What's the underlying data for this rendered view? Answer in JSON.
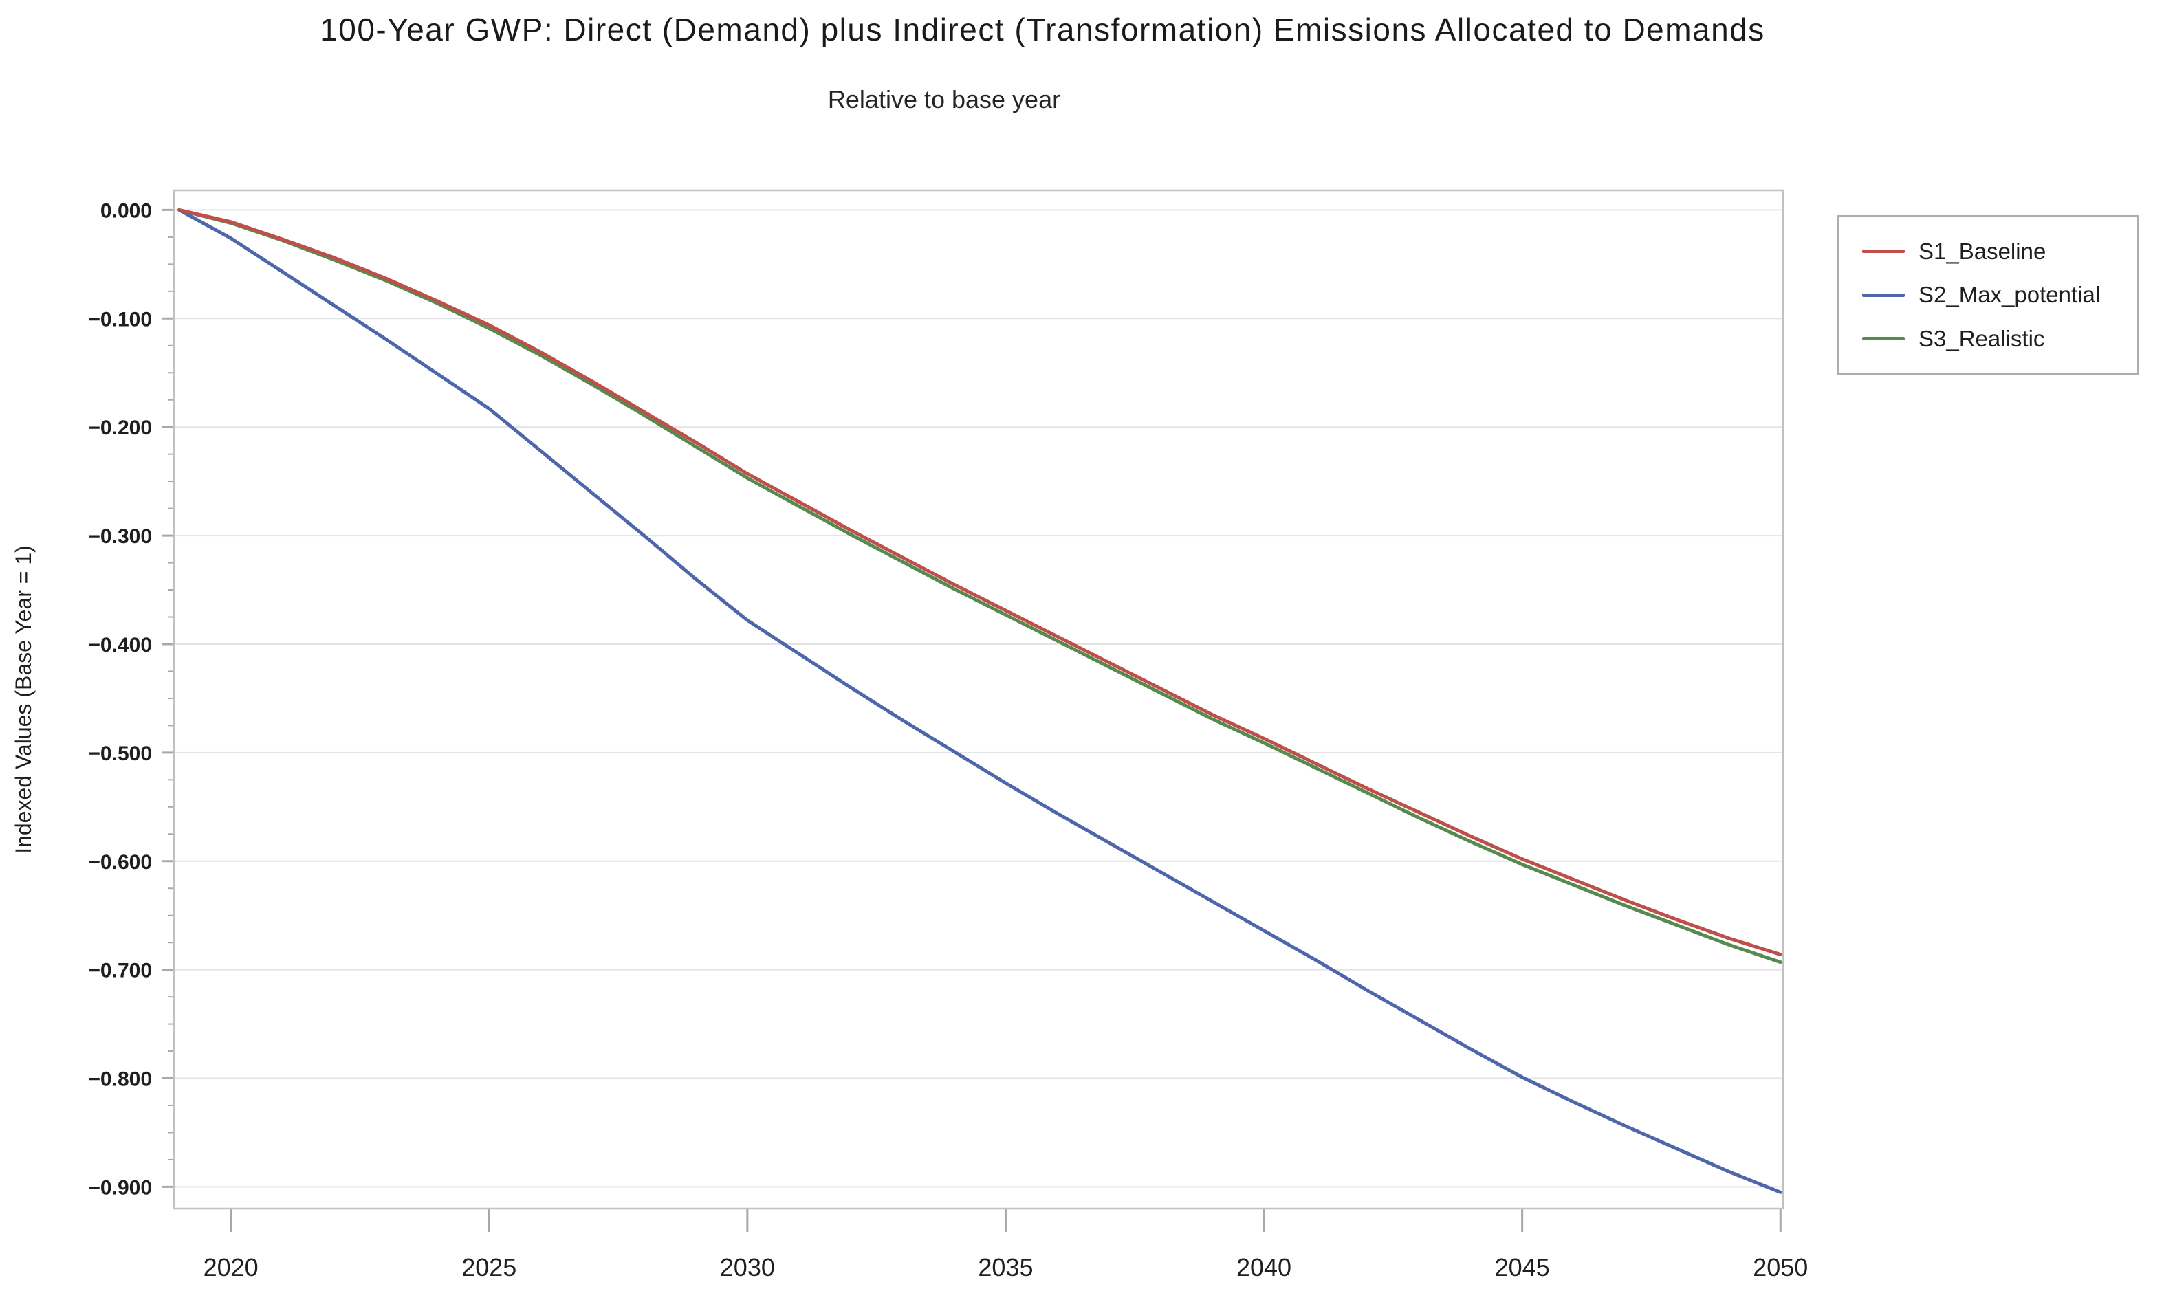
{
  "title": "100-Year GWP: Direct (Demand) plus Indirect (Transformation) Emissions Allocated to Demands",
  "subtitle": "Relative to base year",
  "chart_data": {
    "type": "line",
    "title": "100-Year GWP: Direct (Demand) plus Indirect (Transformation) Emissions Allocated to Demands",
    "subtitle": "Relative to base year",
    "ylabel": "Indexed Values (Base Year = 1)",
    "xlabel": "",
    "grid": "horizontal",
    "legend_position": "outside-top-right",
    "xlim": [
      2018.9,
      2050.05
    ],
    "ylim": [
      0.018,
      -0.92
    ],
    "y_minor_step": 0.025,
    "xticks": [
      2020,
      2025,
      2030,
      2035,
      2040,
      2045,
      2050
    ],
    "yticks": [
      {
        "value": 0.0,
        "label": "0.000"
      },
      {
        "value": -0.1,
        "label": "−0.100"
      },
      {
        "value": -0.2,
        "label": "−0.200"
      },
      {
        "value": -0.3,
        "label": "−0.300"
      },
      {
        "value": -0.4,
        "label": "−0.400"
      },
      {
        "value": -0.5,
        "label": "−0.500"
      },
      {
        "value": -0.6,
        "label": "−0.600"
      },
      {
        "value": -0.7,
        "label": "−0.700"
      },
      {
        "value": -0.8,
        "label": "−0.800"
      },
      {
        "value": -0.9,
        "label": "−0.900"
      }
    ],
    "x": [
      2019,
      2020,
      2021,
      2022,
      2023,
      2024,
      2025,
      2026,
      2027,
      2028,
      2029,
      2030,
      2031,
      2032,
      2033,
      2034,
      2035,
      2036,
      2037,
      2038,
      2039,
      2040,
      2041,
      2042,
      2043,
      2044,
      2045,
      2046,
      2047,
      2048,
      2049,
      2050
    ],
    "series": [
      {
        "name": "S1_Baseline",
        "color": "#bf4f4a",
        "values": [
          0.0,
          -0.011,
          -0.027,
          -0.044,
          -0.063,
          -0.084,
          -0.106,
          -0.131,
          -0.158,
          -0.186,
          -0.214,
          -0.243,
          -0.269,
          -0.295,
          -0.32,
          -0.345,
          -0.369,
          -0.393,
          -0.417,
          -0.441,
          -0.465,
          -0.487,
          -0.51,
          -0.533,
          -0.555,
          -0.577,
          -0.598,
          -0.617,
          -0.636,
          -0.654,
          -0.671,
          -0.686
        ]
      },
      {
        "name": "S2_Max_potential",
        "color": "#4e66aa",
        "values": [
          0.0,
          -0.026,
          -0.057,
          -0.088,
          -0.119,
          -0.151,
          -0.183,
          -0.222,
          -0.261,
          -0.3,
          -0.34,
          -0.378,
          -0.409,
          -0.44,
          -0.47,
          -0.499,
          -0.528,
          -0.556,
          -0.583,
          -0.61,
          -0.637,
          -0.664,
          -0.691,
          -0.719,
          -0.746,
          -0.773,
          -0.799,
          -0.822,
          -0.844,
          -0.865,
          -0.886,
          -0.905
        ]
      },
      {
        "name": "S3_Realistic",
        "color": "#578a4f",
        "values": [
          0.0,
          -0.012,
          -0.028,
          -0.046,
          -0.065,
          -0.086,
          -0.109,
          -0.134,
          -0.161,
          -0.189,
          -0.218,
          -0.247,
          -0.273,
          -0.299,
          -0.324,
          -0.349,
          -0.373,
          -0.397,
          -0.421,
          -0.445,
          -0.469,
          -0.491,
          -0.514,
          -0.537,
          -0.56,
          -0.582,
          -0.603,
          -0.622,
          -0.641,
          -0.659,
          -0.677,
          -0.693
        ]
      }
    ],
    "style": {
      "grid_color": "#e3e3e3",
      "frame_color": "#c1c1c1",
      "tick_color": "#a8a8a8",
      "text_color": "#1f1f1f"
    }
  }
}
